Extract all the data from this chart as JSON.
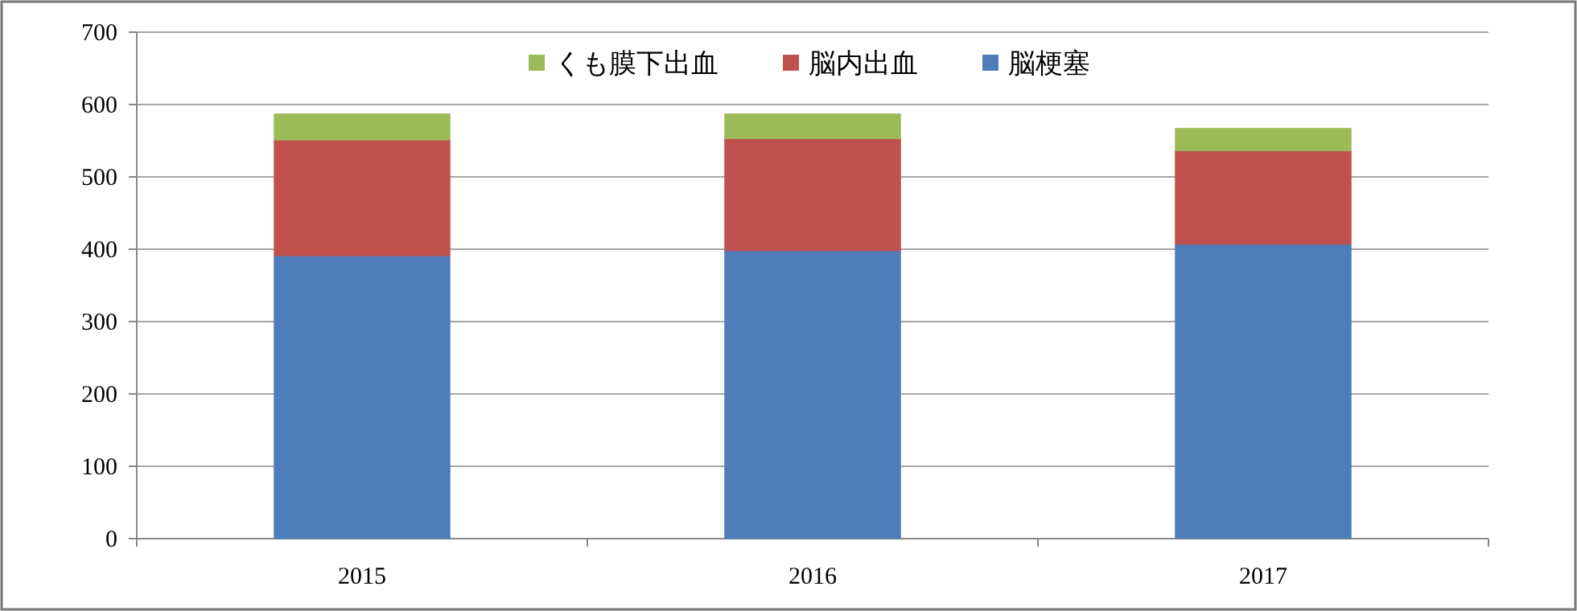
{
  "chart_data": {
    "type": "bar",
    "stacked": true,
    "categories": [
      "2015",
      "2016",
      "2017"
    ],
    "series": [
      {
        "name": "脳梗塞",
        "color": "#4f7dba",
        "values": [
          391,
          398,
          407
        ]
      },
      {
        "name": "脳内出血",
        "color": "#c0504d",
        "values": [
          160,
          155,
          129
        ]
      },
      {
        "name": "くも膜下出血",
        "color": "#9bbb59",
        "values": [
          36,
          34,
          31
        ]
      }
    ],
    "ylim": [
      0,
      700
    ],
    "yticks": [
      0,
      100,
      200,
      300,
      400,
      500,
      600,
      700
    ],
    "grid": "y",
    "legend": "top"
  }
}
